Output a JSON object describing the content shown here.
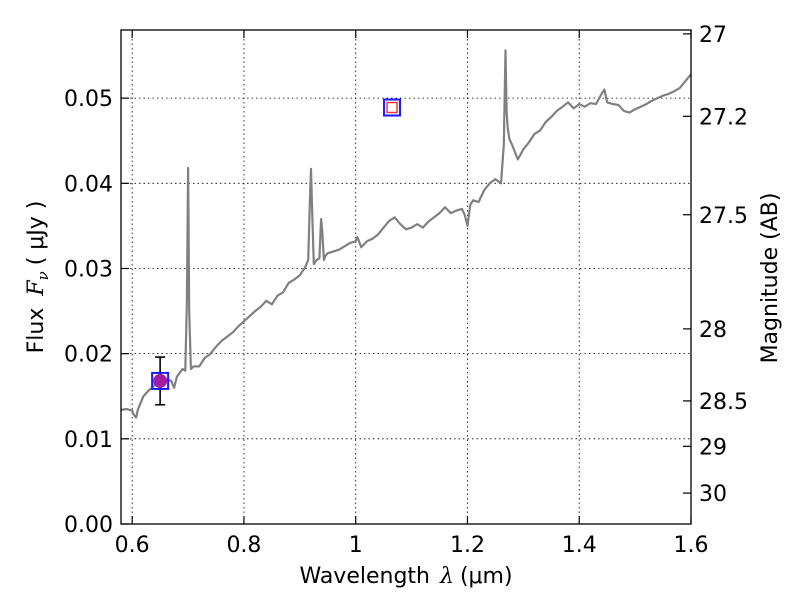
{
  "chart_data": {
    "type": "line",
    "xlabel": "Wavelength",
    "xlabel_math": "λ",
    "xlabel_unit": "(μm)",
    "ylabel": "Flux",
    "ylabel_math": "F",
    "ylabel_sub": "ν",
    "ylabel_unit": "( μJy )",
    "y2label": "Magnitude (AB)",
    "xlim": [
      0.58,
      1.6
    ],
    "ylim": [
      0.0,
      0.058
    ],
    "grid": true,
    "xticks": [
      {
        "value": 0.6,
        "label": "0.6"
      },
      {
        "value": 0.8,
        "label": "0.8"
      },
      {
        "value": 1.0,
        "label": "1"
      },
      {
        "value": 1.2,
        "label": "1.2"
      },
      {
        "value": 1.4,
        "label": "1.4"
      },
      {
        "value": 1.6,
        "label": "1.6"
      }
    ],
    "yticks": [
      {
        "value": 0.0,
        "label": "0.00"
      },
      {
        "value": 0.01,
        "label": "0.01"
      },
      {
        "value": 0.02,
        "label": "0.02"
      },
      {
        "value": 0.03,
        "label": "0.03"
      },
      {
        "value": 0.04,
        "label": "0.04"
      },
      {
        "value": 0.05,
        "label": "0.05"
      }
    ],
    "y2ticks": [
      {
        "mag": 27,
        "label": "27"
      },
      {
        "mag": 27.2,
        "label": "27.2"
      },
      {
        "mag": 27.5,
        "label": "27.5"
      },
      {
        "mag": 28,
        "label": "28"
      },
      {
        "mag": 28.5,
        "label": "28.5"
      },
      {
        "mag": 29,
        "label": "29"
      },
      {
        "mag": 30,
        "label": "30"
      }
    ],
    "series": [
      {
        "name": "spectrum",
        "color": "#808080",
        "x": [
          0.58,
          0.59,
          0.6,
          0.603,
          0.607,
          0.61,
          0.615,
          0.62,
          0.63,
          0.64,
          0.65,
          0.66,
          0.67,
          0.675,
          0.68,
          0.69,
          0.695,
          0.698,
          0.7,
          0.702,
          0.705,
          0.71,
          0.72,
          0.73,
          0.74,
          0.75,
          0.76,
          0.77,
          0.78,
          0.79,
          0.8,
          0.81,
          0.82,
          0.83,
          0.84,
          0.85,
          0.86,
          0.87,
          0.88,
          0.89,
          0.9,
          0.91,
          0.915,
          0.918,
          0.92,
          0.922,
          0.925,
          0.93,
          0.935,
          0.938,
          0.94,
          0.943,
          0.946,
          0.95,
          0.96,
          0.97,
          0.98,
          0.99,
          1.0,
          1.003,
          1.01,
          1.02,
          1.03,
          1.04,
          1.05,
          1.06,
          1.07,
          1.08,
          1.09,
          1.1,
          1.11,
          1.12,
          1.13,
          1.14,
          1.15,
          1.16,
          1.17,
          1.18,
          1.19,
          1.195,
          1.2,
          1.205,
          1.21,
          1.22,
          1.23,
          1.24,
          1.25,
          1.26,
          1.265,
          1.268,
          1.27,
          1.272,
          1.275,
          1.28,
          1.29,
          1.3,
          1.31,
          1.32,
          1.33,
          1.34,
          1.35,
          1.36,
          1.37,
          1.38,
          1.39,
          1.4,
          1.41,
          1.42,
          1.43,
          1.44,
          1.445,
          1.45,
          1.46,
          1.47,
          1.48,
          1.49,
          1.5,
          1.51,
          1.52,
          1.53,
          1.54,
          1.55,
          1.56,
          1.57,
          1.58,
          1.59,
          1.6
        ],
        "y": [
          0.0134,
          0.0135,
          0.0133,
          0.0128,
          0.0125,
          0.0134,
          0.0142,
          0.015,
          0.0157,
          0.0163,
          0.0167,
          0.017,
          0.0168,
          0.016,
          0.0173,
          0.0182,
          0.018,
          0.0262,
          0.0418,
          0.025,
          0.0182,
          0.0185,
          0.0185,
          0.0195,
          0.02,
          0.0208,
          0.0215,
          0.022,
          0.0225,
          0.0232,
          0.0238,
          0.0244,
          0.025,
          0.0255,
          0.0262,
          0.0258,
          0.0268,
          0.0272,
          0.0283,
          0.0287,
          0.0292,
          0.0302,
          0.031,
          0.038,
          0.0417,
          0.037,
          0.0305,
          0.031,
          0.0312,
          0.0358,
          0.0345,
          0.031,
          0.0315,
          0.0318,
          0.032,
          0.0322,
          0.0326,
          0.033,
          0.0332,
          0.0337,
          0.0325,
          0.0332,
          0.0335,
          0.034,
          0.0348,
          0.0356,
          0.036,
          0.0352,
          0.0346,
          0.0348,
          0.0352,
          0.0348,
          0.0355,
          0.036,
          0.0365,
          0.0372,
          0.0365,
          0.0368,
          0.037,
          0.0363,
          0.035,
          0.0375,
          0.038,
          0.0378,
          0.0392,
          0.04,
          0.0405,
          0.04,
          0.0445,
          0.0556,
          0.0485,
          0.0465,
          0.0452,
          0.0445,
          0.0428,
          0.044,
          0.0448,
          0.0458,
          0.0462,
          0.0472,
          0.0478,
          0.0485,
          0.049,
          0.0495,
          0.0488,
          0.0493,
          0.049,
          0.0494,
          0.0493,
          0.0505,
          0.051,
          0.0495,
          0.0493,
          0.0492,
          0.0485,
          0.0483,
          0.0487,
          0.049,
          0.0493,
          0.0497,
          0.05,
          0.0503,
          0.0505,
          0.0508,
          0.0512,
          0.052,
          0.0528
        ]
      }
    ],
    "points": [
      {
        "name": "observed-photometry",
        "x": 0.65,
        "y": 0.0168,
        "yerr": 0.0028,
        "marker": "circle",
        "color": "#a31aa3",
        "box_color": "#1a1aff"
      },
      {
        "name": "upper-band",
        "x": 1.065,
        "y": 0.0489,
        "marker": "square",
        "color": "#ff3333",
        "box_color": "#1a1aff"
      }
    ]
  }
}
